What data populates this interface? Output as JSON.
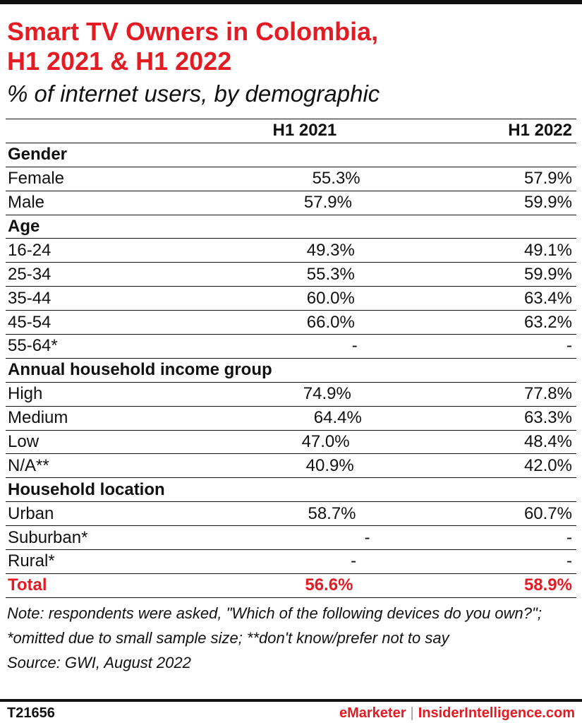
{
  "title_lines": [
    "Smart TV Owners in Colombia,",
    "H1 2021 & H1 2022"
  ],
  "subtitle": "% of internet users, by demographic",
  "columns": [
    "H1 2021",
    "H1 2022"
  ],
  "rows": [
    {
      "type": "group",
      "label": "Gender"
    },
    {
      "type": "data",
      "label": "Female",
      "v1": "55.3%",
      "v2": "57.9%"
    },
    {
      "type": "data",
      "label": "Male",
      "v1": "57.9%",
      "v2": "59.9%"
    },
    {
      "type": "group",
      "label": "Age"
    },
    {
      "type": "data",
      "label": "16-24",
      "v1": "49.3%",
      "v2": "49.1%"
    },
    {
      "type": "data",
      "label": "25-34",
      "v1": "55.3%",
      "v2": "59.9%"
    },
    {
      "type": "data",
      "label": "35-44",
      "v1": "60.0%",
      "v2": "63.4%"
    },
    {
      "type": "data",
      "label": "45-54",
      "v1": "66.0%",
      "v2": "63.2%"
    },
    {
      "type": "data",
      "label": "55-64*",
      "v1": "-",
      "v2": "-"
    },
    {
      "type": "group",
      "label": "Annual household income group"
    },
    {
      "type": "data",
      "label": "High",
      "v1": "74.9%",
      "v2": "77.8%"
    },
    {
      "type": "data",
      "label": "Medium",
      "v1": "64.4%",
      "v2": "63.3%"
    },
    {
      "type": "data",
      "label": "Low",
      "v1": "47.0%",
      "v2": "48.4%"
    },
    {
      "type": "data",
      "label": "N/A**",
      "v1": "40.9%",
      "v2": "42.0%"
    },
    {
      "type": "group",
      "label": "Household location"
    },
    {
      "type": "data",
      "label": "Urban",
      "v1": "58.7%",
      "v2": "60.7%"
    },
    {
      "type": "data",
      "label": "Suburban*",
      "v1": "-",
      "v2": "-"
    },
    {
      "type": "data",
      "label": "Rural*",
      "v1": "-",
      "v2": "-"
    },
    {
      "type": "total",
      "label": "Total",
      "v1": "56.6%",
      "v2": "58.9%"
    }
  ],
  "note": "Note: respondents were asked, \"Which of the following devices do you own?\"; *omitted due to small sample size; **don't know/prefer not to say",
  "source": "Source: GWI, August 2022",
  "footer": {
    "id": "T21656",
    "brand1": "eMarketer",
    "separator": "|",
    "brand2": "InsiderIntelligence.com"
  },
  "colors": {
    "accent": "#e31b23",
    "text": "#111111"
  }
}
